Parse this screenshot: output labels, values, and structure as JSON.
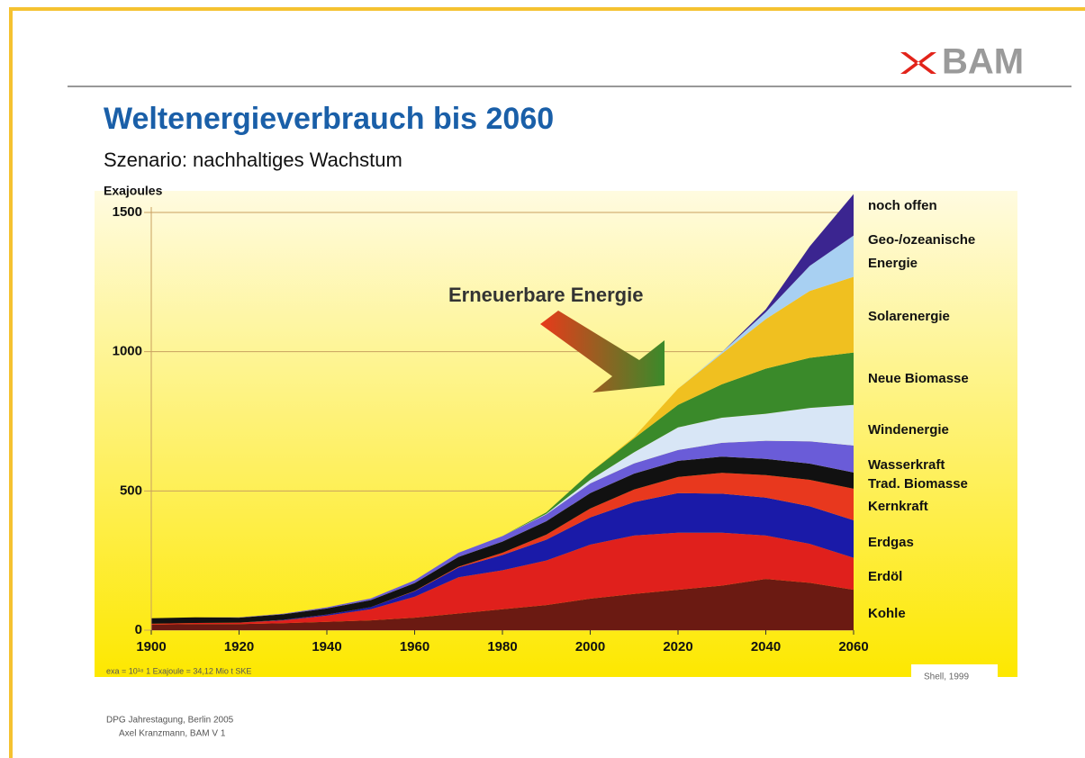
{
  "header": {
    "logo": "BAM",
    "title": "Weltenergieverbrauch bis 2060",
    "subtitle": "Szenario: nachhaltiges Wachstum"
  },
  "chart_data": {
    "type": "stacked_area",
    "y_label": "Exajoules",
    "annotation": "Erneuerbare Energie",
    "footnote": "exa = 10¹⁸ 1 Exajoule = 34,12 Mio t SKE",
    "source": "Shell, 1999",
    "x": [
      1900,
      1910,
      1920,
      1930,
      1940,
      1950,
      1960,
      1970,
      1980,
      1990,
      2000,
      2010,
      2020,
      2030,
      2040,
      2050,
      2060
    ],
    "xlim": [
      1900,
      2060
    ],
    "xticks": [
      1900,
      1920,
      1940,
      1960,
      1980,
      2000,
      2020,
      2040,
      2060
    ],
    "ylim": [
      0,
      1500
    ],
    "yticks": [
      0,
      500,
      1000,
      1500
    ],
    "grid": true,
    "series": [
      {
        "name": "Kohle",
        "color": "#6b1a12",
        "values": [
          20,
          22,
          22,
          25,
          30,
          35,
          45,
          60,
          75,
          90,
          113,
          130,
          145,
          160,
          184,
          170,
          145
        ]
      },
      {
        "name": "Erdöl",
        "color": "#e0201c",
        "values": [
          3,
          4,
          5,
          10,
          22,
          40,
          75,
          130,
          140,
          160,
          194,
          210,
          205,
          190,
          156,
          140,
          115
        ]
      },
      {
        "name": "Erdgas",
        "color": "#1a1aa8",
        "values": [
          0,
          0,
          0,
          2,
          4,
          8,
          20,
          35,
          55,
          75,
          98,
          120,
          142,
          140,
          136,
          135,
          135
        ]
      },
      {
        "name": "Kernkraft",
        "color": "#e8381e",
        "values": [
          0,
          0,
          0,
          0,
          0,
          0,
          1,
          3,
          8,
          18,
          32,
          45,
          58,
          75,
          81,
          95,
          113
        ]
      },
      {
        "name": "Trad. Biomasse",
        "color": "#111111",
        "values": [
          20,
          20,
          18,
          20,
          22,
          25,
          28,
          35,
          40,
          48,
          55,
          57,
          58,
          58,
          58,
          58,
          58
        ]
      },
      {
        "name": "Wasserkraft",
        "color": "#6a5cd8",
        "values": [
          0,
          0,
          1,
          2,
          4,
          6,
          10,
          15,
          20,
          25,
          35,
          37,
          39,
          50,
          65,
          80,
          97
        ]
      },
      {
        "name": "Windenergie",
        "color": "#d8e6f6",
        "values": [
          0,
          0,
          0,
          0,
          0,
          0,
          0,
          0,
          0,
          2,
          13,
          40,
          81,
          90,
          97,
          120,
          146
        ]
      },
      {
        "name": "Neue Biomasse",
        "color": "#3a8a2a",
        "values": [
          0,
          0,
          0,
          0,
          0,
          0,
          0,
          0,
          0,
          5,
          26,
          50,
          81,
          120,
          162,
          180,
          188
        ]
      },
      {
        "name": "Solarenergie",
        "color": "#f0c020",
        "values": [
          0,
          0,
          0,
          0,
          0,
          0,
          0,
          0,
          0,
          0,
          0,
          5,
          58,
          110,
          178,
          240,
          272
        ]
      },
      {
        "name": "Geo-/ozeanische Energie",
        "color": "#a8d0f2",
        "values": [
          0,
          0,
          0,
          0,
          0,
          0,
          0,
          0,
          0,
          0,
          0,
          0,
          0,
          5,
          25,
          90,
          148
        ]
      },
      {
        "name": "noch offen",
        "color": "#3b2590",
        "values": [
          0,
          0,
          0,
          0,
          0,
          0,
          0,
          0,
          0,
          0,
          0,
          0,
          0,
          0,
          10,
          70,
          149
        ]
      }
    ]
  },
  "footer": {
    "lines": [
      "DPG Jahrestagung, Berlin 2005",
      "Axel Kranzmann, BAM V 1"
    ]
  }
}
